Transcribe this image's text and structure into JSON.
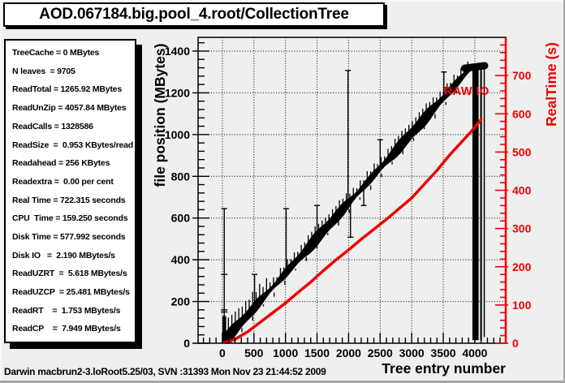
{
  "window": {
    "title": "AOD.067184.big.pool_4.root/CollectionTree",
    "footer": "Darwin macbrun2-3.loRoot5.25/03, SVN :31393 Mon Nov 23 21:44:52 2009"
  },
  "stats_panel": {
    "lines": [
      "TreeCache = 0 MBytes",
      "N leaves  = 9705",
      "ReadTotal = 1265.92 MBytes",
      "ReadUnZip = 4057.84 MBytes",
      "ReadCalls = 1328586",
      "ReadSize  =  0.953 KBytes/read",
      "Readahead = 256 KBytes",
      "Readextra =  0.00 per cent",
      "Real Time = 722.315 seconds",
      "CPU  Time = 159.250 seconds",
      "Disk Time = 577.992 seconds",
      "Disk IO   =  2.190 MBytes/s",
      "ReadUZRT  =  5.618 MBytes/s",
      "ReadUZCP  = 25.481 MBytes/s",
      "ReadRT    =  1.753 MBytes/s",
      "ReadCP    =  7.949 MBytes/s"
    ]
  },
  "colors": {
    "background": "#efefef",
    "panel": "#ffffff",
    "black": "#000000",
    "red": "#ee0000"
  },
  "chart_data": {
    "type": "scatter",
    "title": "",
    "xlabel": "Tree entry number",
    "grid": "dotted",
    "x_ticks": [
      0,
      500,
      1000,
      1500,
      2000,
      2500,
      3000,
      3500,
      4000
    ],
    "x_minor_step": 100,
    "x_range": [
      -385,
      4490
    ],
    "y_left": {
      "label": "file position (MBytes)",
      "ticks": [
        0,
        200,
        400,
        600,
        800,
        1000,
        1200,
        1400
      ],
      "minor_step": 40,
      "range": [
        0,
        1466
      ],
      "color": "#000000"
    },
    "y_right": {
      "label": "RealTime (s)",
      "ticks": [
        0,
        100,
        200,
        300,
        400,
        500,
        600,
        700
      ],
      "minor_step": 20,
      "range": [
        0,
        800
      ],
      "color": "#ee0000"
    },
    "annotation": {
      "text": "RAW IO",
      "color": "#ee0000",
      "entry": 3870,
      "value": 1190
    },
    "series": [
      {
        "name": "file-position-scatter",
        "type": "scatter-band",
        "color": "#000000",
        "trend": [
          [
            0,
            0
          ],
          [
            3950,
            1325
          ]
        ],
        "band_half_width_mbytes": 26,
        "plateau": [
          [
            3840,
            1318
          ],
          [
            4155,
            1330
          ]
        ],
        "start_block": {
          "entry_range": [
            0,
            60
          ],
          "value_range": [
            0,
            130
          ]
        },
        "spikes_up": [
          [
            30,
            645
          ],
          [
            510,
            330
          ],
          [
            1010,
            645
          ],
          [
            1500,
            660
          ],
          [
            1990,
            1307
          ],
          [
            2240,
            660
          ],
          [
            2500,
            975
          ],
          [
            3000,
            1005
          ],
          [
            3510,
            1300
          ]
        ],
        "spikes_down": [
          [
            2030,
            508
          ]
        ],
        "first_spike_mid_caps": [
          330,
          160,
          150
        ],
        "full_bars": [
          [
            3962,
            4060,
            15,
            1318
          ],
          [
            4085,
            4112,
            15,
            1318
          ],
          [
            4140,
            4152,
            30,
            1315
          ]
        ]
      },
      {
        "name": "raw-io-realtime",
        "type": "line",
        "axis": "right",
        "color": "#ee0000",
        "points": [
          [
            0,
            0
          ],
          [
            200,
            10
          ],
          [
            400,
            30
          ],
          [
            600,
            55
          ],
          [
            800,
            80
          ],
          [
            1000,
            105
          ],
          [
            1200,
            133
          ],
          [
            1400,
            160
          ],
          [
            1600,
            190
          ],
          [
            1800,
            218
          ],
          [
            2000,
            244
          ],
          [
            2200,
            272
          ],
          [
            2400,
            298
          ],
          [
            2600,
            324
          ],
          [
            2800,
            352
          ],
          [
            3000,
            380
          ],
          [
            3200,
            416
          ],
          [
            3400,
            452
          ],
          [
            3600,
            492
          ],
          [
            3800,
            528
          ],
          [
            3950,
            555
          ],
          [
            4100,
            585
          ]
        ]
      }
    ]
  }
}
